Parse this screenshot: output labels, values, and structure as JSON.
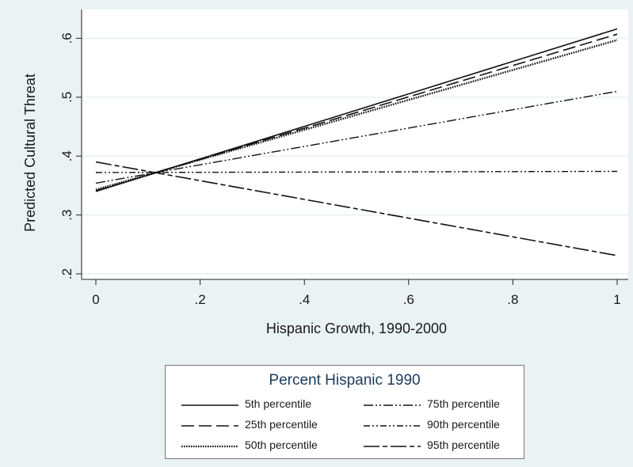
{
  "chart_data": {
    "type": "line",
    "xlabel": "Hispanic Growth, 1990-2000",
    "ylabel": "Predicted Cultural Threat",
    "xlim": [
      0,
      1
    ],
    "ylim": [
      0.2,
      0.62
    ],
    "xticks": [
      "0",
      ".2",
      ".4",
      ".6",
      ".8",
      "1"
    ],
    "yticks": [
      ".2",
      ".3",
      ".4",
      ".5",
      ".6"
    ],
    "grid": "horizontal",
    "x": [
      0,
      1
    ],
    "series": [
      {
        "name": "5th percentile",
        "style": "solid",
        "values": [
          0.34,
          0.616
        ]
      },
      {
        "name": "25th percentile",
        "style": "long-dash",
        "values": [
          0.341,
          0.607
        ]
      },
      {
        "name": "50th percentile",
        "style": "dotted",
        "values": [
          0.343,
          0.597
        ]
      },
      {
        "name": "75th percentile",
        "style": "dash-dot-dot",
        "values": [
          0.354,
          0.51
        ]
      },
      {
        "name": "90th percentile",
        "style": "dash-dot-dot",
        "values": [
          0.372,
          0.374
        ]
      },
      {
        "name": "95th percentile",
        "style": "dash-short-dash",
        "values": [
          0.39,
          0.231
        ]
      }
    ],
    "legend": {
      "title": "Percent Hispanic 1990",
      "position": "bottom"
    }
  }
}
